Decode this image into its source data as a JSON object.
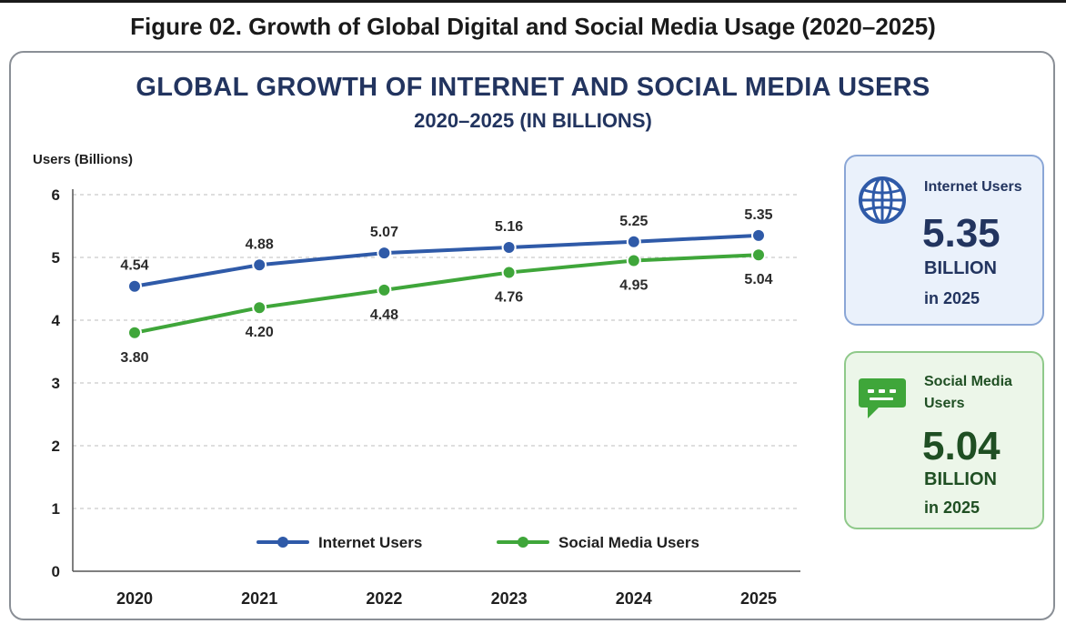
{
  "figure_caption": "Figure 02. Growth of Global Digital and Social Media Usage (2020–2025)",
  "colors": {
    "internet": "#2f5aa8",
    "social": "#3fa63a",
    "title": "#22345f",
    "grid": "#c9c9c9"
  },
  "chart_data": {
    "type": "line",
    "title": "GLOBAL GROWTH OF INTERNET AND SOCIAL MEDIA USERS",
    "subtitle": "2020–2025 (IN BILLIONS)",
    "xlabel": "",
    "ylabel": "Users (Billions)",
    "x": [
      "2020",
      "2021",
      "2022",
      "2023",
      "2024",
      "2025"
    ],
    "ylim": [
      0,
      6
    ],
    "yticks": [
      "0",
      "1",
      "2",
      "3",
      "4",
      "5",
      "6"
    ],
    "grid": "horizontal-dashed",
    "legend_position": "bottom-center",
    "series": [
      {
        "name": "Internet Users",
        "values": [
          4.54,
          4.88,
          5.07,
          5.16,
          5.25,
          5.35
        ],
        "labels": [
          "4.54",
          "4.88",
          "5.07",
          "5.16",
          "5.25",
          "5.35"
        ],
        "label_side": "above"
      },
      {
        "name": "Social Media Users",
        "values": [
          3.8,
          4.2,
          4.48,
          4.76,
          4.95,
          5.04
        ],
        "labels": [
          "3.80",
          "4.20",
          "4.48",
          "4.76",
          "4.95",
          "5.04"
        ],
        "label_side": "below"
      }
    ]
  },
  "cards": {
    "internet": {
      "icon": "globe-icon",
      "heading": "Internet Users",
      "value": "5.35",
      "unit": "BILLION",
      "year": "in 2025"
    },
    "social": {
      "icon": "chat-bubble-icon",
      "heading": "Social Media Users",
      "value": "5.04",
      "unit": "BILLION",
      "year": "in 2025"
    }
  }
}
